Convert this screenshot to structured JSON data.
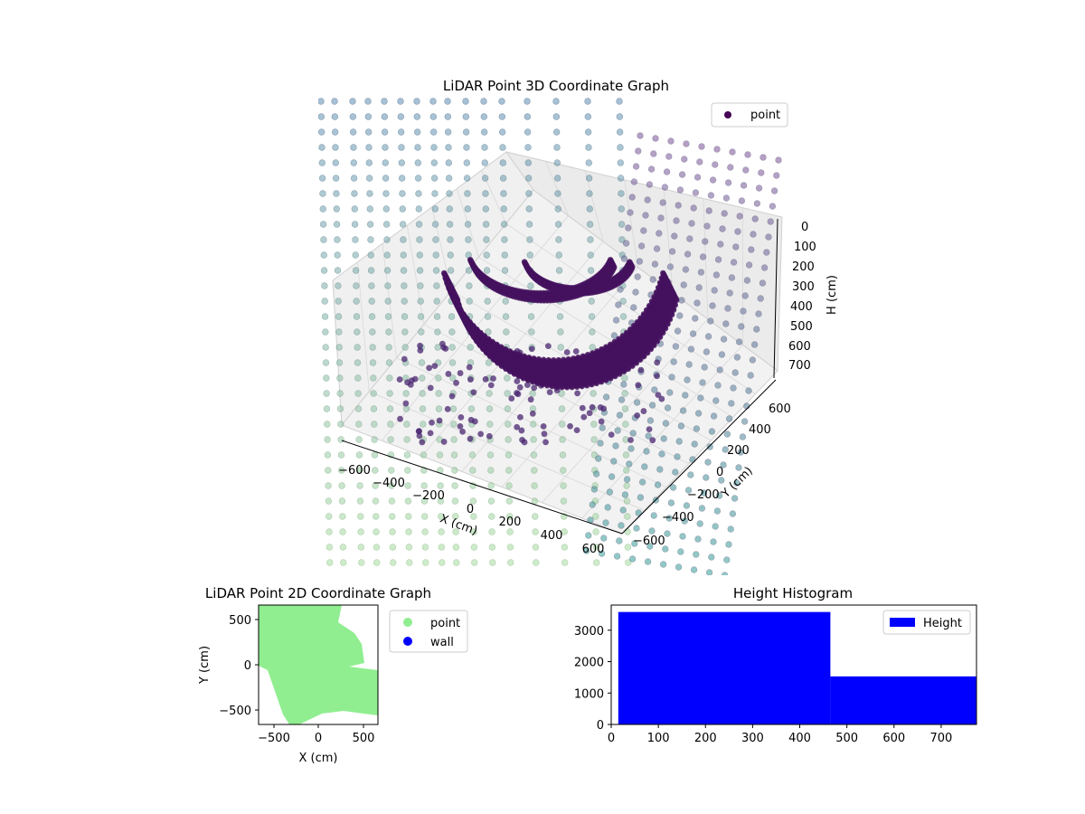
{
  "chart_data": [
    {
      "type": "scatter",
      "projection": "3d",
      "title": "LiDAR Point 3D Coordinate Graph",
      "xlabel": "X (cm)",
      "ylabel": "Y (cm)",
      "zlabel": "H (cm)",
      "x_ticks": [
        "−600",
        "−400",
        "−200",
        "0",
        "200",
        "400",
        "600"
      ],
      "y_ticks": [
        "−600",
        "−400",
        "−200",
        "0",
        "200",
        "400",
        "600"
      ],
      "z_ticks": [
        "0",
        "100",
        "200",
        "300",
        "400",
        "500",
        "600",
        "700"
      ],
      "xlim": [
        -650,
        650
      ],
      "ylim": [
        -650,
        650
      ],
      "zlim": [
        0,
        770
      ],
      "z_inverted": true,
      "colormap": "viridis",
      "legend": {
        "labels": [
          "point"
        ],
        "placement": "upper right",
        "marker_color": "#440154"
      },
      "series": [
        {
          "name": "point",
          "description_points": "dense arc of points near the ceiling plus grid of wall points",
          "arc_x": [
            -500,
            -400,
            -300,
            -200,
            -100,
            0,
            100,
            200,
            300,
            400,
            500
          ],
          "arc_y": [
            0,
            120,
            200,
            250,
            270,
            280,
            270,
            250,
            200,
            120,
            0
          ],
          "arc_h": [
            300,
            420,
            500,
            560,
            590,
            600,
            590,
            560,
            500,
            420,
            300
          ]
        }
      ],
      "grid": true
    },
    {
      "type": "scatter",
      "title": "LiDAR Point 2D Coordinate Graph",
      "xlabel": "X (cm)",
      "ylabel": "Y (cm)",
      "x_ticks": [
        "−500",
        "0",
        "500"
      ],
      "y_ticks": [
        "500",
        "0",
        "−500"
      ],
      "xlim": [
        -660,
        660
      ],
      "ylim": [
        -660,
        660
      ],
      "legend": {
        "labels": [
          "point",
          "wall"
        ],
        "placement": "right, outside",
        "colors": [
          "#90ee90",
          "#0000ff"
        ]
      },
      "series": [
        {
          "name": "point",
          "color": "#90ee90"
        },
        {
          "name": "wall",
          "color": "#0000ff"
        }
      ]
    },
    {
      "type": "bar",
      "title": "Height Histogram",
      "x_ticks": [
        "0",
        "100",
        "200",
        "300",
        "400",
        "500",
        "600",
        "700"
      ],
      "y_ticks": [
        "0",
        "1000",
        "2000",
        "3000"
      ],
      "xlim": [
        0,
        775
      ],
      "ylim": [
        0,
        3800
      ],
      "bins": [
        [
          15,
          465
        ],
        [
          465,
          775
        ]
      ],
      "values": [
        3580,
        1530
      ],
      "color": "#0000ff",
      "legend": {
        "labels": [
          "Height"
        ],
        "placement": "upper right"
      }
    }
  ]
}
